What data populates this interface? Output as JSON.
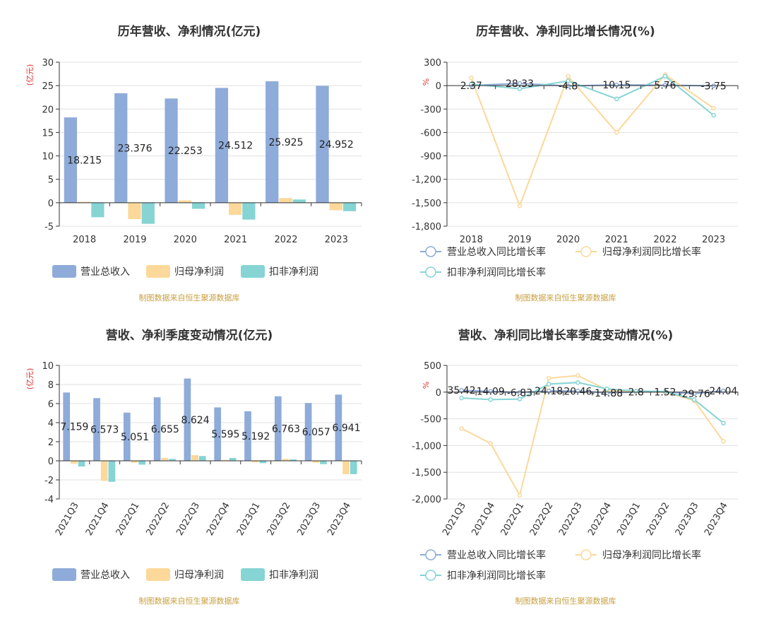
{
  "colors": {
    "revenue": "#8eabd9",
    "netprofit": "#fcd89a",
    "deducted": "#86d4d4",
    "unit": "#e03030",
    "source": "#c8a040"
  },
  "chart_data": [
    {
      "type": "bar",
      "title": "历年营收、净利情况(亿元)",
      "unit_label": "(亿元)",
      "categories": [
        "2018",
        "2019",
        "2020",
        "2021",
        "2022",
        "2023"
      ],
      "ylim": [
        -5,
        30
      ],
      "yticks": [
        "-5",
        "0",
        "5",
        "10",
        "15",
        "20",
        "25",
        "30"
      ],
      "yticks_values": [
        -5,
        0,
        5,
        10,
        15,
        20,
        25,
        30
      ],
      "series": [
        {
          "name": "营业总收入",
          "values": [
            18.215,
            23.376,
            22.253,
            24.512,
            25.925,
            24.952
          ],
          "labels": [
            "18.215",
            "23.376",
            "22.253",
            "24.512",
            "25.925",
            "24.952"
          ]
        },
        {
          "name": "归母净利润",
          "values": [
            0.2,
            -3.5,
            0.5,
            -2.6,
            1.0,
            -1.6
          ]
        },
        {
          "name": "扣非净利润",
          "values": [
            -3.1,
            -4.5,
            -1.3,
            -3.6,
            0.7,
            -1.8
          ]
        }
      ],
      "source": "制图数据来自恒生聚源数据库"
    },
    {
      "type": "line",
      "title": "历年营收、净利同比增长情况(%)",
      "unit_label": "%",
      "categories": [
        "2018",
        "2019",
        "2020",
        "2021",
        "2022",
        "2023"
      ],
      "ylim": [
        -1800,
        300
      ],
      "yticks": [
        "-1,800",
        "-1,500",
        "-1,200",
        "-900",
        "-600",
        "-300",
        "0",
        "300"
      ],
      "yticks_values": [
        -1800,
        -1500,
        -1200,
        -900,
        -600,
        -300,
        0,
        300
      ],
      "series": [
        {
          "name": "营业总收入同比增长率",
          "values": [
            2.37,
            28.33,
            -4.8,
            10.15,
            5.76,
            -3.75
          ],
          "labels": [
            "2.37",
            "28.33",
            "-4.8",
            "10.15",
            "5.76",
            "-3.75"
          ]
        },
        {
          "name": "归母净利润同比增长率",
          "values": [
            100,
            -1540,
            120,
            -600,
            140,
            -290
          ]
        },
        {
          "name": "扣非净利润同比增长率",
          "values": [
            20,
            -40,
            60,
            -170,
            120,
            -380
          ]
        }
      ],
      "source": "制图数据来自恒生聚源数据库"
    },
    {
      "type": "bar",
      "title": "营收、净利季度变动情况(亿元)",
      "unit_label": "(亿元)",
      "categories": [
        "2021Q3",
        "2021Q4",
        "2022Q1",
        "2022Q2",
        "2022Q3",
        "2022Q4",
        "2023Q1",
        "2023Q2",
        "2023Q3",
        "2023Q4"
      ],
      "ylim": [
        -4,
        10
      ],
      "yticks": [
        "-4",
        "-2",
        "0",
        "2",
        "4",
        "6",
        "8",
        "10"
      ],
      "yticks_values": [
        -4,
        -2,
        0,
        2,
        4,
        6,
        8,
        10
      ],
      "series": [
        {
          "name": "营业总收入",
          "values": [
            7.159,
            6.573,
            5.051,
            6.655,
            8.624,
            5.595,
            5.192,
            6.763,
            6.057,
            6.941
          ],
          "labels": [
            "7.159",
            "6.573",
            "5.051",
            "6.655",
            "8.624",
            "5.595",
            "5.192",
            "6.763",
            "6.057",
            "6.941"
          ]
        },
        {
          "name": "归母净利润",
          "values": [
            -0.3,
            -2.1,
            -0.2,
            0.3,
            0.6,
            0.1,
            -0.15,
            0.2,
            -0.2,
            -1.4
          ]
        },
        {
          "name": "扣非净利润",
          "values": [
            -0.6,
            -2.2,
            -0.4,
            0.2,
            0.5,
            0.3,
            -0.25,
            0.15,
            -0.35,
            -1.4
          ]
        }
      ],
      "source": "制图数据来自恒生聚源数据库"
    },
    {
      "type": "line",
      "title": "营收、净利同比增长率季度变动情况(%)",
      "unit_label": "%",
      "categories": [
        "2021Q3",
        "2021Q4",
        "2022Q1",
        "2022Q2",
        "2022Q3",
        "2022Q4",
        "2023Q1",
        "2023Q2",
        "2023Q3",
        "2023Q4"
      ],
      "ylim": [
        -2000,
        500
      ],
      "yticks": [
        "-2,000",
        "-1,500",
        "-1,000",
        "-500",
        "0",
        "500"
      ],
      "yticks_values": [
        -2000,
        -1500,
        -1000,
        -500,
        0,
        500
      ],
      "series": [
        {
          "name": "营业总收入同比增长率",
          "values": [
            35.42,
            14.09,
            -6.83,
            24.18,
            20.46,
            -14.88,
            2.8,
            1.52,
            -29.76,
            24.04
          ],
          "labels": [
            "35.42",
            "14.09",
            "-6.83",
            "24.18",
            "20.46",
            "-14.88",
            "2.8",
            "1.52",
            "-29.76",
            "24.04"
          ]
        },
        {
          "name": "归母净利润同比增长率",
          "values": [
            -680,
            -960,
            -1930,
            260,
            310,
            40,
            10,
            0,
            -160,
            -920
          ]
        },
        {
          "name": "扣非净利润同比增长率",
          "values": [
            -110,
            -140,
            -130,
            150,
            180,
            60,
            20,
            10,
            -140,
            -580
          ]
        }
      ],
      "source": "制图数据来自恒生聚源数据库"
    }
  ]
}
